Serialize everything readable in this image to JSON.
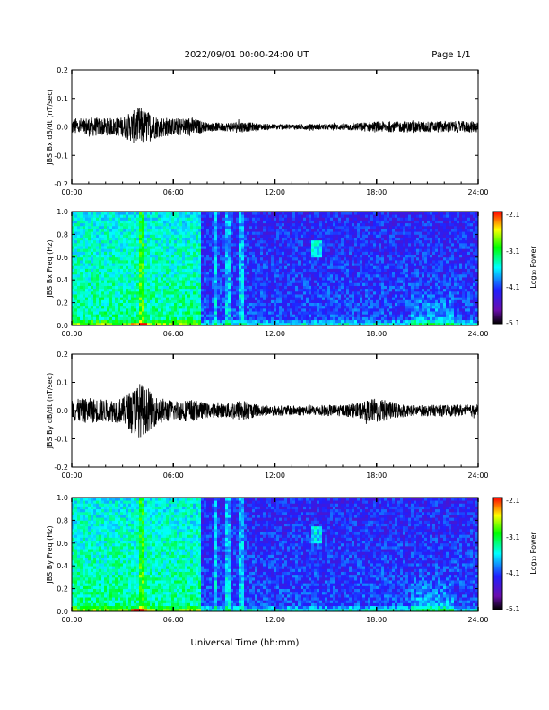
{
  "header": {
    "date_range": "2022/09/01  00:00-24:00 UT",
    "page": "Page 1/1"
  },
  "footer": {
    "xlabel": "Universal Time (hh:mm)"
  },
  "colorbar": {
    "label": "Log₁₀ Power",
    "ticks": [
      "-2.1",
      "-3.1",
      "-4.1",
      "-5.1"
    ],
    "range": [
      -5.1,
      -2.1
    ],
    "colors": [
      "#000000",
      "#6a0dad",
      "#2020ff",
      "#00ffff",
      "#00ff00",
      "#ffff00",
      "#ff0000"
    ]
  },
  "chart_data": [
    {
      "type": "line",
      "ylabel": "JBS Bx dB/dt (nT/sec)",
      "ylim": [
        -0.2,
        0.2
      ],
      "y_ticks": [
        "0.2",
        "0.1",
        "0.0",
        "-0.1",
        "-0.2"
      ],
      "x_ticks": [
        "00:00",
        "06:00",
        "12:00",
        "18:00",
        "24:00"
      ],
      "xlim_hours": [
        0,
        24
      ],
      "envelope": {
        "hours": [
          0,
          1,
          2,
          3,
          4,
          5,
          6,
          7,
          8,
          9,
          10,
          11,
          12,
          13,
          14,
          15,
          16,
          17,
          18,
          19,
          20,
          21,
          22,
          23,
          24
        ],
        "amplitude": [
          0.03,
          0.035,
          0.03,
          0.035,
          0.07,
          0.04,
          0.03,
          0.035,
          0.015,
          0.015,
          0.02,
          0.012,
          0.01,
          0.01,
          0.01,
          0.01,
          0.012,
          0.015,
          0.02,
          0.018,
          0.02,
          0.02,
          0.02,
          0.02,
          0.02
        ]
      }
    },
    {
      "type": "heatmap",
      "ylabel": "JBS Bx Freq (Hz)",
      "ylim": [
        0.0,
        1.0
      ],
      "y_ticks": [
        "1.0",
        "0.8",
        "0.6",
        "0.4",
        "0.2",
        "0.0"
      ],
      "x_ticks": [
        "00:00",
        "06:00",
        "12:00",
        "18:00",
        "24:00"
      ],
      "xlim_hours": [
        0,
        24
      ],
      "zlabel": "Log₁₀ Power",
      "zlim": [
        -5.1,
        -2.1
      ]
    },
    {
      "type": "line",
      "ylabel": "JBS By dB/dt (nT/sec)",
      "ylim": [
        -0.2,
        0.2
      ],
      "y_ticks": [
        "0.2",
        "0.1",
        "0.0",
        "-0.1",
        "-0.2"
      ],
      "x_ticks": [
        "00:00",
        "06:00",
        "12:00",
        "18:00",
        "24:00"
      ],
      "xlim_hours": [
        0,
        24
      ],
      "envelope": {
        "hours": [
          0,
          1,
          2,
          3,
          4,
          5,
          6,
          7,
          8,
          9,
          10,
          11,
          12,
          13,
          14,
          15,
          16,
          17,
          18,
          19,
          20,
          21,
          22,
          23,
          24
        ],
        "amplitude": [
          0.04,
          0.045,
          0.04,
          0.045,
          0.1,
          0.05,
          0.035,
          0.04,
          0.025,
          0.025,
          0.04,
          0.02,
          0.018,
          0.018,
          0.018,
          0.02,
          0.02,
          0.03,
          0.045,
          0.03,
          0.02,
          0.02,
          0.02,
          0.02,
          0.02
        ]
      }
    },
    {
      "type": "heatmap",
      "ylabel": "JBS By Freq (Hz)",
      "ylim": [
        0.0,
        1.0
      ],
      "y_ticks": [
        "1.0",
        "0.8",
        "0.6",
        "0.4",
        "0.2",
        "0.0"
      ],
      "x_ticks": [
        "00:00",
        "06:00",
        "12:00",
        "18:00",
        "24:00"
      ],
      "xlim_hours": [
        0,
        24
      ],
      "zlabel": "Log₁₀ Power",
      "zlim": [
        -5.1,
        -2.1
      ]
    }
  ]
}
